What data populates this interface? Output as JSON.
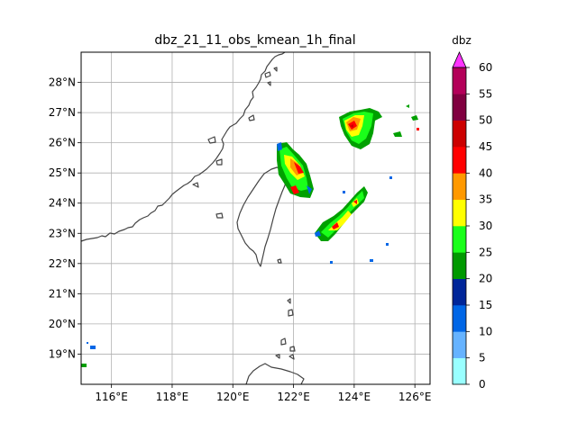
{
  "title": "dbz_21_11_obs_kmean_1h_final",
  "map": {
    "lon_range": [
      115,
      126.5
    ],
    "lat_range": [
      18,
      29
    ],
    "lon_ticks": [
      {
        "value": 116,
        "label": "116°E"
      },
      {
        "value": 118,
        "label": "118°E"
      },
      {
        "value": 120,
        "label": "120°E"
      },
      {
        "value": 122,
        "label": "122°E"
      },
      {
        "value": 124,
        "label": "124°E"
      },
      {
        "value": 126,
        "label": "126°E"
      }
    ],
    "lat_ticks": [
      {
        "value": 19,
        "label": "19°N"
      },
      {
        "value": 20,
        "label": "20°N"
      },
      {
        "value": 21,
        "label": "21°N"
      },
      {
        "value": 22,
        "label": "22°N"
      },
      {
        "value": 23,
        "label": "23°N"
      },
      {
        "value": 24,
        "label": "24°N"
      },
      {
        "value": 25,
        "label": "25°N"
      },
      {
        "value": 26,
        "label": "26°N"
      },
      {
        "value": 27,
        "label": "27°N"
      },
      {
        "value": 28,
        "label": "28°N"
      }
    ],
    "grid": true,
    "coastline_color": "#444444"
  },
  "colorbar": {
    "label": "dbz",
    "levels": [
      0,
      5,
      10,
      15,
      20,
      25,
      30,
      35,
      40,
      45,
      50,
      55,
      60
    ],
    "level_labels": [
      "0",
      "5",
      "10",
      "15",
      "20",
      "25",
      "30",
      "35",
      "40",
      "45",
      "50",
      "55",
      "60"
    ],
    "colors": [
      "#99ffff",
      "#66b3ff",
      "#0066e6",
      "#002699",
      "#009900",
      "#1aff1a",
      "#ffff00",
      "#ff9900",
      "#ff0000",
      "#cc0000",
      "#800040",
      "#b30059"
    ],
    "extend_color": "#ff33ff"
  }
}
